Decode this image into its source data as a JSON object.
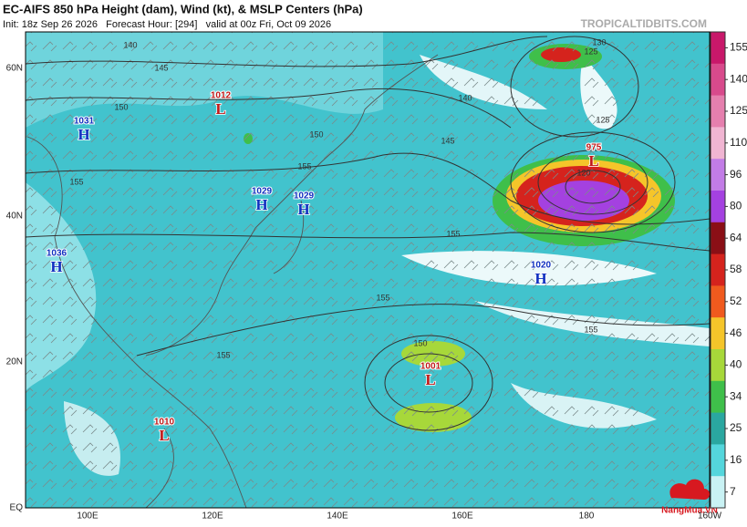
{
  "header": {
    "title": "EC-AIFS 850 hPa Height (dam), Wind (kt), & MSLP Centers (hPa)",
    "subtitle": "Init: 18z Sep 26 2026   Forecast Hour: [294]   valid at 00z Fri, Oct 09 2026",
    "site": "TROPICALTIDBITS.COM"
  },
  "axes": {
    "lat": [
      "60N",
      "40N",
      "20N",
      "EQ"
    ],
    "lon": [
      "100E",
      "120E",
      "140E",
      "160E",
      "180",
      "160W"
    ]
  },
  "colorbar": {
    "ticks": [
      155,
      140,
      125,
      110,
      96,
      80,
      64,
      58,
      52,
      46,
      40,
      34,
      25,
      16,
      7
    ],
    "colors": [
      "#c8186a",
      "#d84a8c",
      "#e57fae",
      "#f0b5d2",
      "#c27ce6",
      "#a441e0",
      "#8a0f16",
      "#d5231d",
      "#f05a1e",
      "#f5c52a",
      "#a7d83a",
      "#3fbf4a",
      "#2aa7a0",
      "#54d6dc",
      "#c9f2f4"
    ]
  },
  "centers": [
    {
      "value": "1012",
      "kind": "L"
    },
    {
      "value": "1031",
      "kind": "H"
    },
    {
      "value": "1029",
      "kind": "H"
    },
    {
      "value": "1029",
      "kind": "H"
    },
    {
      "value": "1036",
      "kind": "H"
    },
    {
      "value": "1020",
      "kind": "H"
    },
    {
      "value": "975",
      "kind": "L"
    },
    {
      "value": "1001",
      "kind": "L"
    },
    {
      "value": "1010",
      "kind": "L"
    }
  ],
  "contour_labels": [
    "140",
    "145",
    "150",
    "155",
    "150",
    "155",
    "155",
    "155",
    "145",
    "140",
    "130",
    "125",
    "125",
    "120",
    "155",
    "155",
    "150"
  ],
  "logo": "NangMua.VN"
}
